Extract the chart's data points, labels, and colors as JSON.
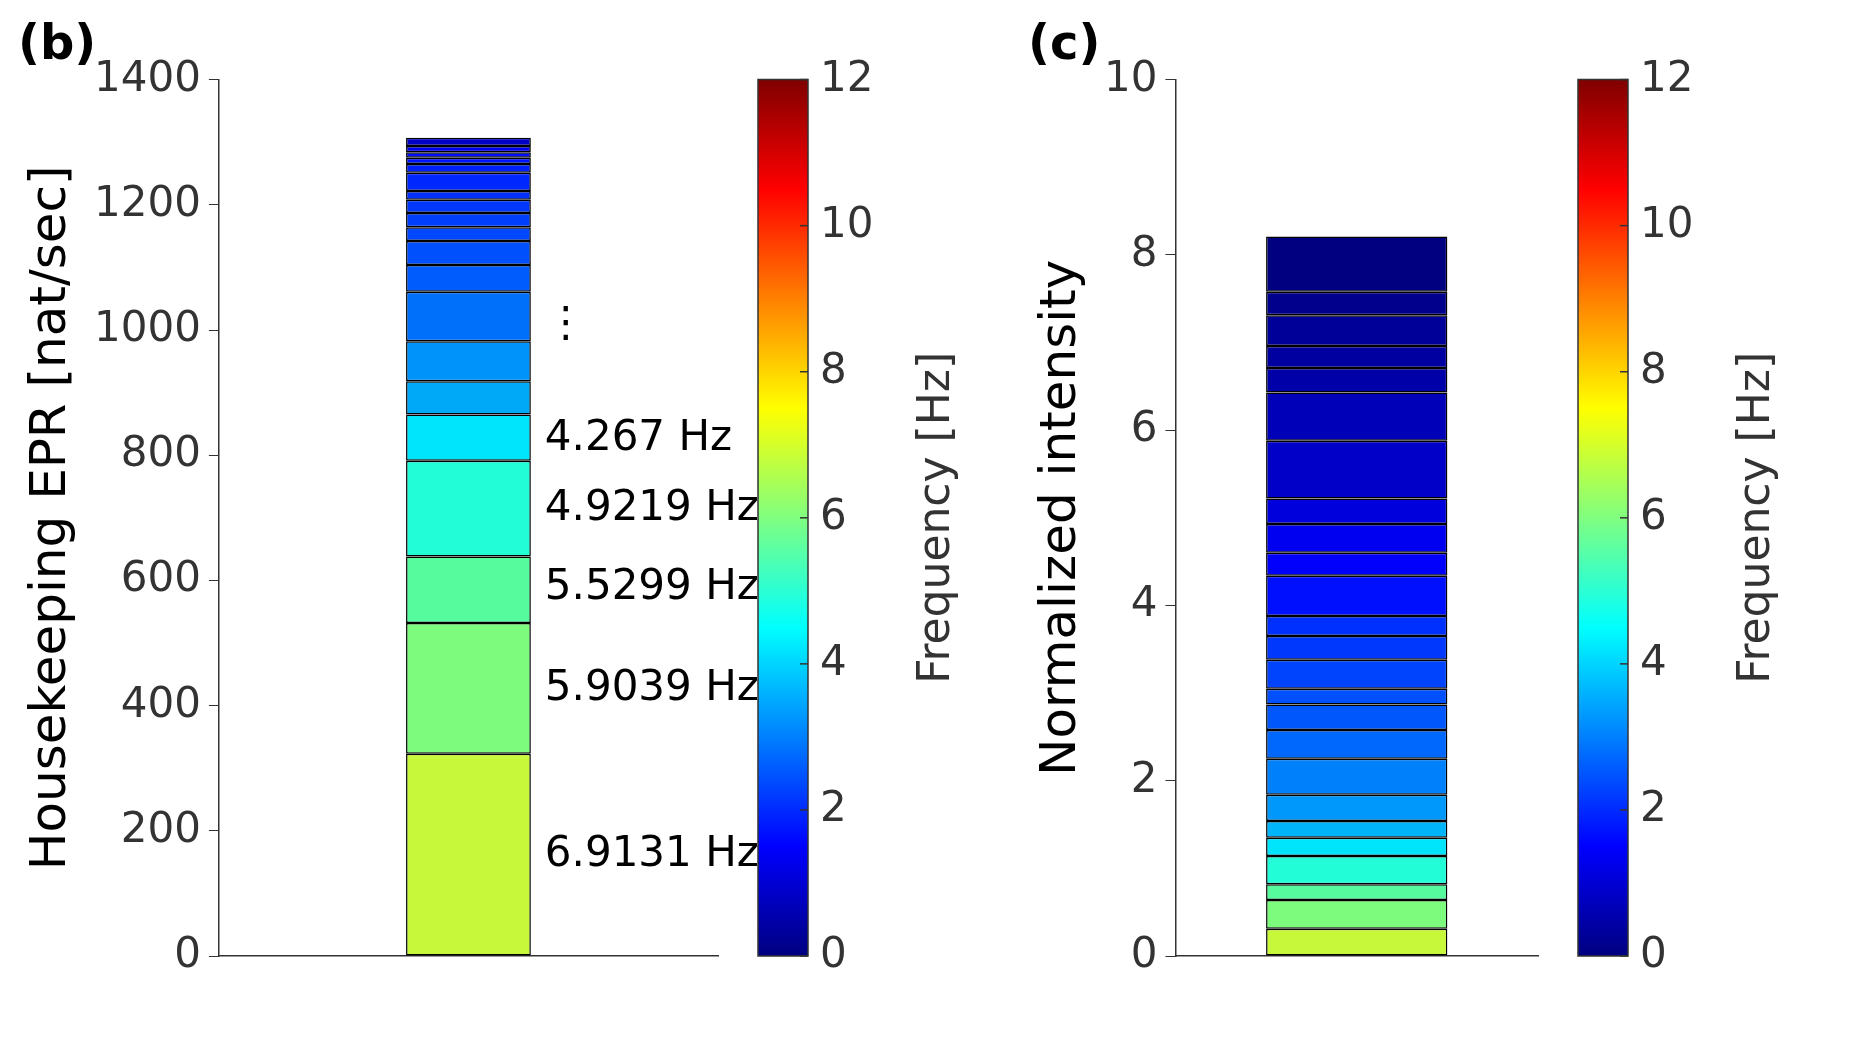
{
  "chart_data": [
    {
      "type": "bar",
      "title": "(b)",
      "ylabel": "Housekeeping EPR [nat/sec]",
      "clabel": "Frequency [Hz]",
      "stacked": true,
      "grid": false,
      "legend": false,
      "categories": [
        null
      ],
      "ylim": [
        0,
        1400
      ],
      "yticks": [
        0,
        200,
        400,
        600,
        800,
        1000,
        1200,
        1400
      ],
      "clim": [
        0,
        12
      ],
      "cticks": [
        0,
        2,
        4,
        6,
        8,
        10,
        12
      ],
      "series": [
        {
          "color": "#c8f83a",
          "values": [
            323
          ]
        },
        {
          "color": "#7dfb7d",
          "values": [
            209
          ]
        },
        {
          "color": "#56fb9e",
          "values": [
            106
          ]
        },
        {
          "color": "#22fdd8",
          "values": [
            153
          ]
        },
        {
          "color": "#00e4fc",
          "values": [
            74
          ]
        },
        {
          "color": "#00a8f8",
          "values": [
            53
          ]
        },
        {
          "color": "#0094fa",
          "values": [
            64
          ]
        },
        {
          "color": "#0070fb",
          "values": [
            79
          ]
        },
        {
          "color": "#005cfc",
          "values": [
            43
          ]
        },
        {
          "color": "#0050fd",
          "values": [
            38
          ]
        },
        {
          "color": "#0048fd",
          "values": [
            22
          ]
        },
        {
          "color": "#0040fd",
          "values": [
            23
          ]
        },
        {
          "color": "#0038fe",
          "values": [
            21
          ]
        },
        {
          "color": "#0030fe",
          "values": [
            14
          ]
        },
        {
          "color": "#0028fe",
          "values": [
            29
          ]
        },
        {
          "color": "#0020fe",
          "values": [
            14
          ]
        },
        {
          "color": "#0014fe",
          "values": [
            10
          ]
        },
        {
          "color": "#000cfa",
          "values": [
            9
          ]
        },
        {
          "color": "#0000ee",
          "values": [
            10
          ]
        },
        {
          "color": "#0000c8",
          "values": [
            13
          ]
        }
      ],
      "annotations": [
        "⋮",
        "4.267 Hz",
        "4.9219 Hz",
        "5.5299 Hz",
        "5.9039 Hz",
        "6.9131 Hz"
      ]
    },
    {
      "type": "bar",
      "title": "(c)",
      "ylabel": "Normalized intensity",
      "clabel": "Frequency [Hz]",
      "stacked": true,
      "grid": false,
      "legend": false,
      "categories": [
        null
      ],
      "ylim": [
        0,
        10
      ],
      "yticks": [
        0,
        2,
        4,
        6,
        8,
        10
      ],
      "clim": [
        0,
        12
      ],
      "cticks": [
        0,
        2,
        4,
        6,
        8,
        10,
        12
      ],
      "series": [
        {
          "color": "#c8f83a",
          "values": [
            0.31
          ]
        },
        {
          "color": "#7dfb7d",
          "values": [
            0.33
          ]
        },
        {
          "color": "#56fb9e",
          "values": [
            0.18
          ]
        },
        {
          "color": "#22fdd8",
          "values": [
            0.32
          ]
        },
        {
          "color": "#00e4fc",
          "values": [
            0.21
          ]
        },
        {
          "color": "#00b4fa",
          "values": [
            0.19
          ]
        },
        {
          "color": "#0098fa",
          "values": [
            0.3
          ]
        },
        {
          "color": "#0080fb",
          "values": [
            0.41
          ]
        },
        {
          "color": "#0068fc",
          "values": [
            0.33
          ]
        },
        {
          "color": "#0058fd",
          "values": [
            0.29
          ]
        },
        {
          "color": "#0050fd",
          "values": [
            0.18
          ]
        },
        {
          "color": "#0044fd",
          "values": [
            0.33
          ]
        },
        {
          "color": "#0038fe",
          "values": [
            0.27
          ]
        },
        {
          "color": "#0030fe",
          "values": [
            0.23
          ]
        },
        {
          "color": "#0010fe",
          "values": [
            0.46
          ]
        },
        {
          "color": "#0000fc",
          "values": [
            0.26
          ]
        },
        {
          "color": "#0000f0",
          "values": [
            0.33
          ]
        },
        {
          "color": "#0000dc",
          "values": [
            0.29
          ]
        },
        {
          "color": "#0000c8",
          "values": [
            0.66
          ]
        },
        {
          "color": "#0000b8",
          "values": [
            0.55
          ]
        },
        {
          "color": "#0000a8",
          "values": [
            0.28
          ]
        },
        {
          "color": "#0000a0",
          "values": [
            0.25
          ]
        },
        {
          "color": "#000098",
          "values": [
            0.35
          ]
        },
        {
          "color": "#00008c",
          "values": [
            0.27
          ]
        },
        {
          "color": "#000080",
          "values": [
            0.63
          ]
        }
      ]
    }
  ]
}
